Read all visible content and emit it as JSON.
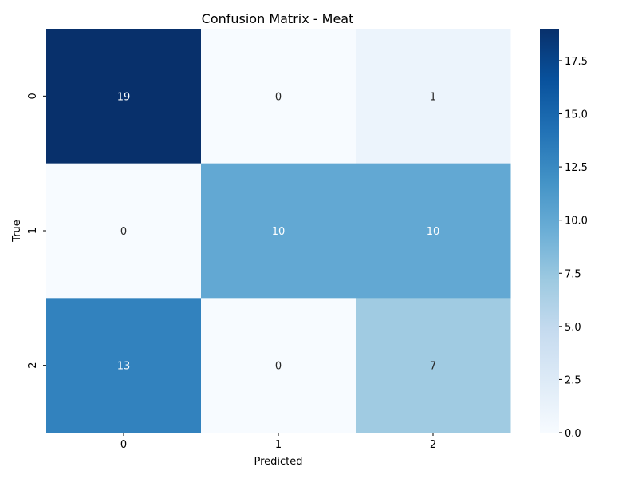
{
  "chart_data": {
    "type": "heatmap",
    "title": "Confusion Matrix - Meat",
    "xlabel": "Predicted",
    "ylabel": "True",
    "x_categories": [
      "0",
      "1",
      "2"
    ],
    "y_categories": [
      "0",
      "1",
      "2"
    ],
    "values": [
      [
        19,
        0,
        1
      ],
      [
        0,
        10,
        10
      ],
      [
        13,
        0,
        7
      ]
    ],
    "colormap": "Blues",
    "vmin": 0,
    "vmax": 19,
    "colorbar_ticks": [
      "0.0",
      "2.5",
      "5.0",
      "7.5",
      "10.0",
      "12.5",
      "15.0",
      "17.5"
    ],
    "colors": {
      "low": "#f7fbff",
      "high": "#08306b",
      "text_light": "#ffffff",
      "text_dark": "#262626"
    }
  }
}
